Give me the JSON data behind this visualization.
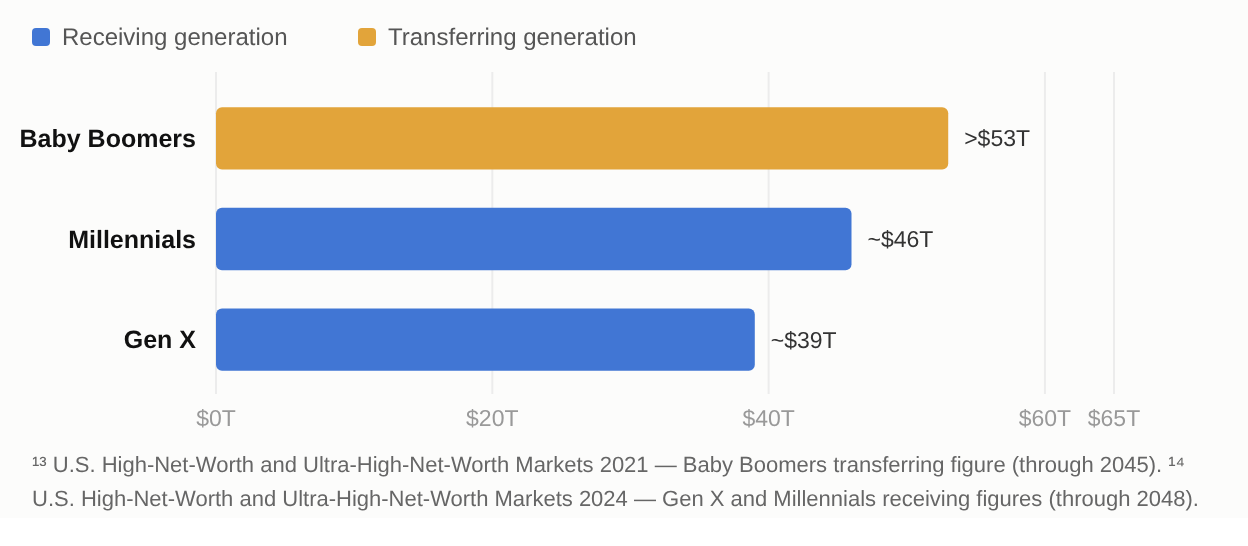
{
  "chart_data": {
    "type": "bar",
    "orientation": "horizontal",
    "categories": [
      "Baby Boomers",
      "Millennials",
      "Gen X"
    ],
    "series": [
      {
        "name": "Receiving generation",
        "color": "#4176d4",
        "values": [
          null,
          46,
          39
        ],
        "value_labels": [
          null,
          "~$46T",
          "~$39T"
        ]
      },
      {
        "name": "Transferring generation",
        "color": "#e2a43a",
        "values": [
          53,
          null,
          null
        ],
        "value_labels": [
          ">$53T",
          null,
          null
        ]
      }
    ],
    "xlim": [
      0,
      65
    ],
    "xticks": [
      {
        "value": 0,
        "label": "$0T"
      },
      {
        "value": 20,
        "label": "$20T"
      },
      {
        "value": 40,
        "label": "$40T"
      },
      {
        "value": 60,
        "label": "$60T"
      },
      {
        "value": 65,
        "label": "$65T"
      }
    ],
    "grid": "x",
    "legend": "top left",
    "annotations": [
      "¹³ U.S. High-Net-Worth and Ultra-High-Net-Worth Markets 2021 — Baby Boomers transferring figure (through 2045).  ¹⁴ U.S. High-Net-Worth and Ultra-High-Net-Worth Markets 2024 — Gen X and Millennials receiving figures (through 2048)."
    ]
  }
}
